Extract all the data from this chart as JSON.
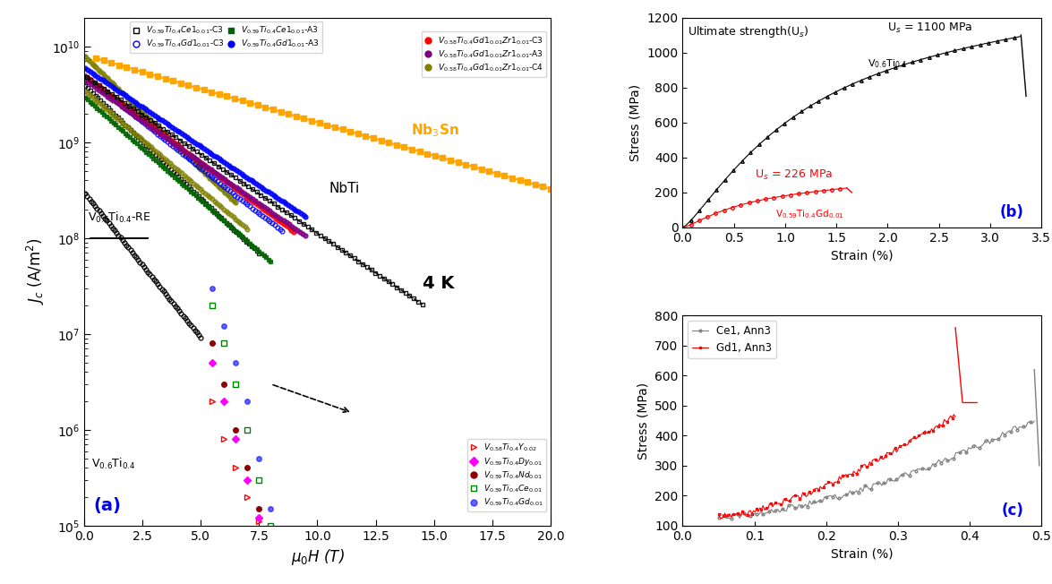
{
  "panel_a": {
    "title": "(a)",
    "xlabel": "$\\mu_0H$ (T)",
    "ylabel": "$J_c$ (A/m$^2$)",
    "xlim": [
      0,
      20
    ],
    "ylim_log": [
      100000.0,
      20000000000.0
    ],
    "annotation_4K": "4 K",
    "annotation_NbTi": "NbTi",
    "annotation_Nb3Sn": "Nb$_3$Sn",
    "annotation_V06Ti04": "V$_{0.6}$Ti$_{0.4}$",
    "annotation_V06Ti04RE": "V$_{0.6}$Ti$_{0.4}$-RE"
  },
  "panel_b": {
    "title": "(b)",
    "xlabel": "Strain (%)",
    "ylabel": "Stress (MPa)",
    "xlim": [
      0,
      3.5
    ],
    "ylim": [
      0,
      1200
    ],
    "label_top": "Ultimate strength(U$_s$)",
    "label_us1100": "U$_s$ = 1100 MPa",
    "label_us226": "U$_s$ = 226 MPa",
    "label_V06Ti04": "V$_{0.6}$Ti$_{0.4}$",
    "label_V059Ti04Gd001": "V$_{0.59}$Ti$_{0.4}$Gd$_{0.01}$"
  },
  "panel_c": {
    "title": "(c)",
    "xlabel": "Strain (%)",
    "ylabel": "Stress (MPa)",
    "xlim": [
      0,
      0.5
    ],
    "ylim": [
      100,
      800
    ],
    "legend_ce": "Ce1, Ann3",
    "legend_gd": "Gd1, Ann3"
  },
  "colors": {
    "olive": "#808000",
    "darkred": "#8B0000",
    "red": "#FF0000",
    "purple": "#800080",
    "green": "#008000",
    "blue": "#0000FF",
    "black": "#000000",
    "orange": "#FFA500",
    "magenta": "#FF00FF",
    "darkgreen": "#006400",
    "gray": "#808080",
    "pink": "#FF69B4",
    "darkblue": "#00008B"
  }
}
